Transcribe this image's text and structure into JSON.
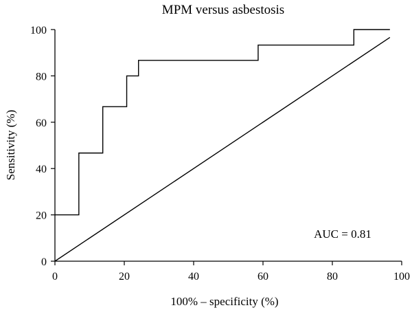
{
  "chart_data": {
    "type": "line",
    "title": "MPM versus asbestosis",
    "xlabel": "100% – specificity (%)",
    "ylabel": "Sensitivity (%)",
    "xlim": [
      0,
      100
    ],
    "ylim": [
      0,
      100
    ],
    "xticks": [
      0,
      20,
      40,
      60,
      80,
      100
    ],
    "yticks": [
      0,
      20,
      40,
      60,
      80,
      100
    ],
    "x_tick_labels": [
      "0",
      "20",
      "40",
      "60",
      "80",
      "100"
    ],
    "y_tick_labels": [
      "0",
      "20",
      "40",
      "60",
      "80",
      "100"
    ],
    "grid": false,
    "legend": "none",
    "annotation": "AUC = 0.81",
    "line_color": "#000000",
    "series": [
      {
        "style": "step",
        "x": [
          0,
          6.9,
          6.9,
          13.8,
          13.8,
          20.7,
          20.7,
          24.1,
          24.1,
          58.6,
          58.6,
          86.2,
          86.2,
          96.6
        ],
        "y": [
          20,
          20,
          46.7,
          46.7,
          66.7,
          66.7,
          80,
          80,
          86.7,
          86.7,
          93.3,
          93.3,
          100,
          100
        ]
      },
      {
        "style": "reference",
        "x": [
          0,
          96.6
        ],
        "y": [
          0,
          96.6
        ]
      }
    ]
  }
}
